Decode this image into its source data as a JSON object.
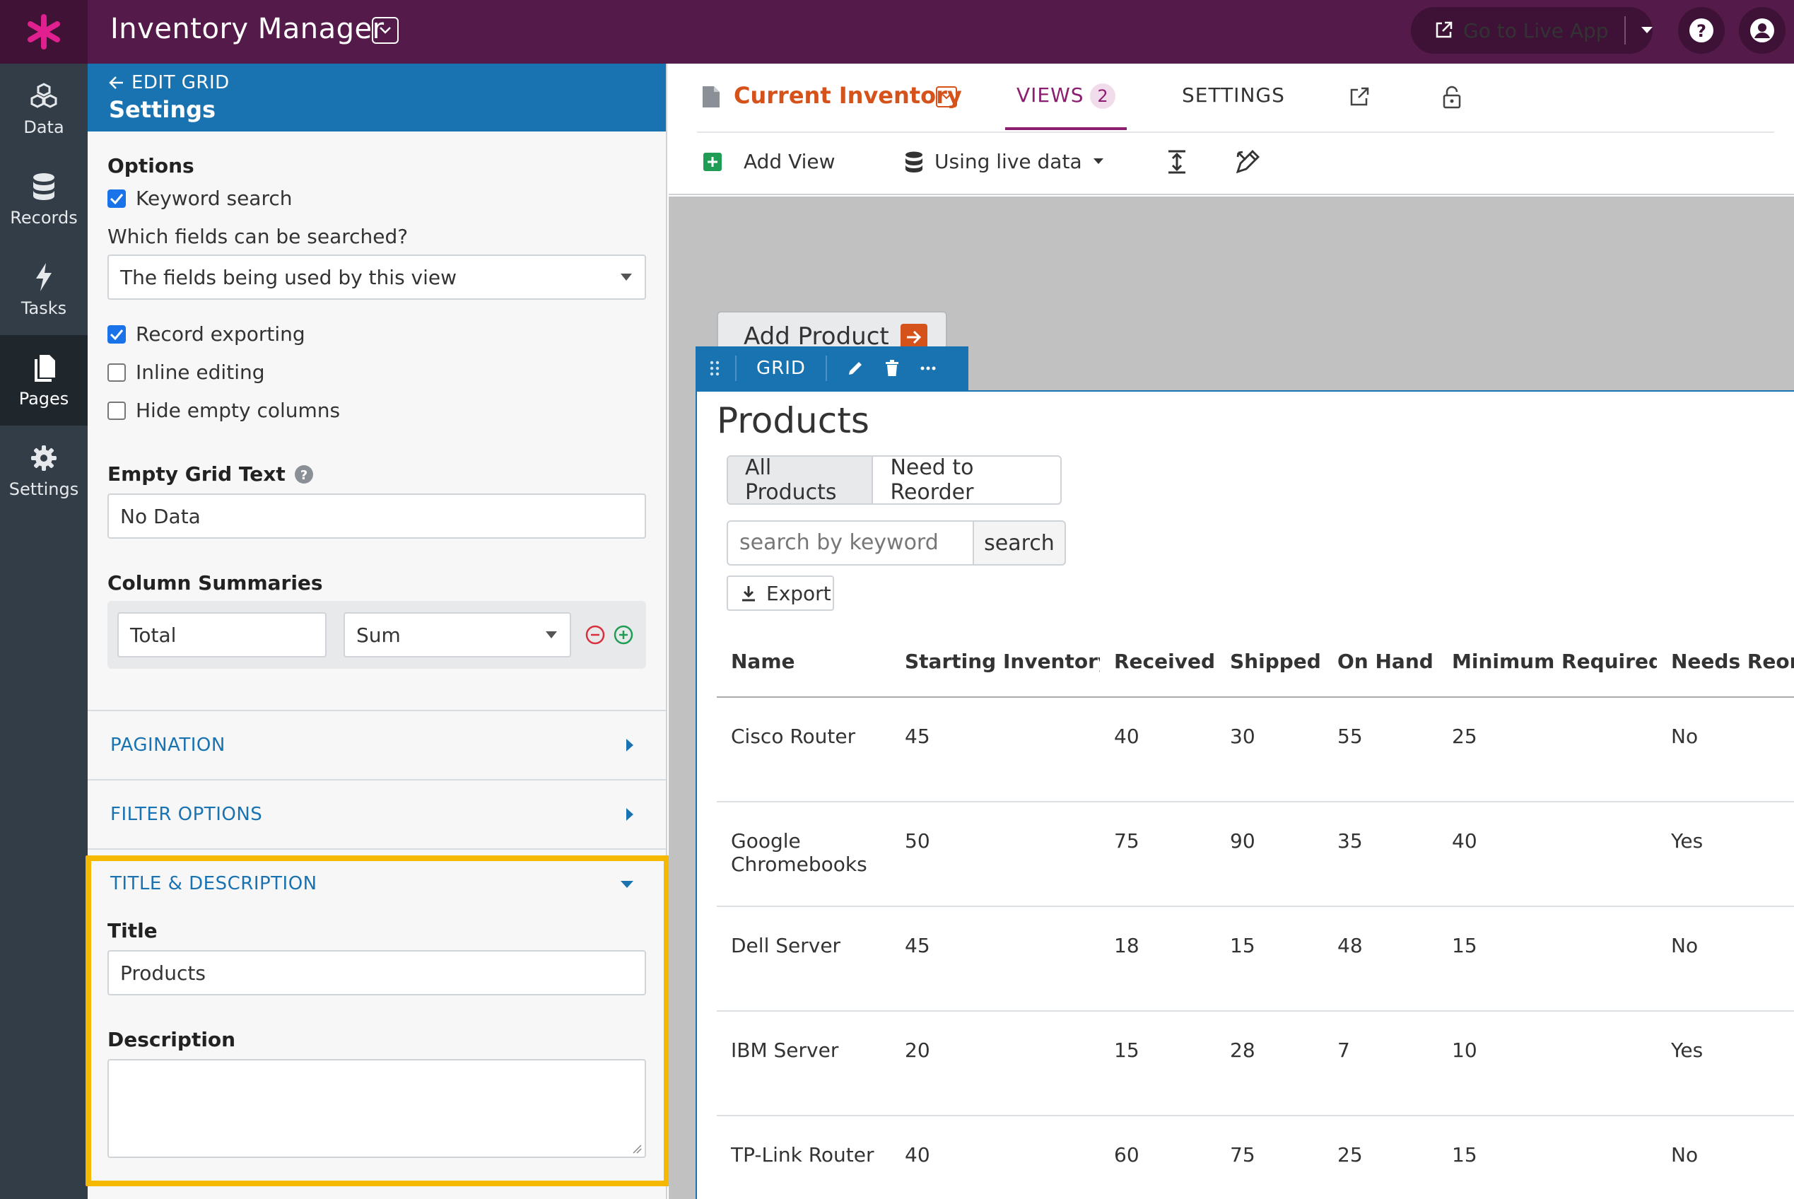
{
  "app": {
    "title": "Inventory Manager",
    "live_app_label": "Go to Live App"
  },
  "rail": [
    {
      "label": "Data",
      "icon": "data-icon"
    },
    {
      "label": "Records",
      "icon": "records-icon"
    },
    {
      "label": "Tasks",
      "icon": "tasks-icon"
    },
    {
      "label": "Pages",
      "icon": "pages-icon",
      "active": true
    },
    {
      "label": "Settings",
      "icon": "settings-icon"
    }
  ],
  "panel": {
    "back_label": "EDIT GRID",
    "title": "Settings",
    "options_heading": "Options",
    "keyword_search": {
      "label": "Keyword search",
      "checked": true
    },
    "fields_question": "Which fields can be searched?",
    "fields_select_value": "The fields being used by this view",
    "record_exporting": {
      "label": "Record exporting",
      "checked": true
    },
    "inline_editing": {
      "label": "Inline editing",
      "checked": false
    },
    "hide_empty_columns": {
      "label": "Hide empty columns",
      "checked": false
    },
    "empty_grid_text_label": "Empty Grid Text",
    "empty_grid_text_value": "No Data",
    "column_summaries_label": "Column Summaries",
    "summary_name_value": "Total",
    "summary_fn_value": "Sum",
    "sections": {
      "pagination": "PAGINATION",
      "filter_options": "FILTER OPTIONS",
      "title_description": "TITLE & DESCRIPTION"
    },
    "title_label": "Title",
    "title_value": "Products",
    "description_label": "Description",
    "description_value": ""
  },
  "main": {
    "view_name": "Current Inventory",
    "views_label": "VIEWS",
    "views_count": "2",
    "settings_label": "SETTINGS",
    "add_view_label": "Add View",
    "data_mode_label": "Using live data"
  },
  "canvas": {
    "add_product_label": "Add Product",
    "grid_bar_label": "GRID",
    "grid_title": "Products",
    "filters": [
      "All Products",
      "Need to Reorder"
    ],
    "search_placeholder": "search by keyword",
    "search_button": "search",
    "export_button": "Export",
    "columns": [
      "Name",
      "Starting Inventory",
      "Received",
      "Shipped",
      "On Hand",
      "Minimum Required",
      "Needs Reorder"
    ],
    "rows": [
      [
        "Cisco Router",
        "45",
        "40",
        "30",
        "55",
        "25",
        "No"
      ],
      [
        "Google Chromebooks",
        "50",
        "75",
        "90",
        "35",
        "40",
        "Yes"
      ],
      [
        "Dell Server",
        "45",
        "18",
        "15",
        "48",
        "15",
        "No"
      ],
      [
        "IBM Server",
        "20",
        "15",
        "28",
        "7",
        "10",
        "Yes"
      ],
      [
        "TP-Link Router",
        "40",
        "60",
        "75",
        "25",
        "15",
        "No"
      ]
    ]
  },
  "colors": {
    "topbar": "#541a49",
    "panel_header": "#1a73b1",
    "accent_orange": "#d5531b",
    "highlight": "#f5b800"
  }
}
